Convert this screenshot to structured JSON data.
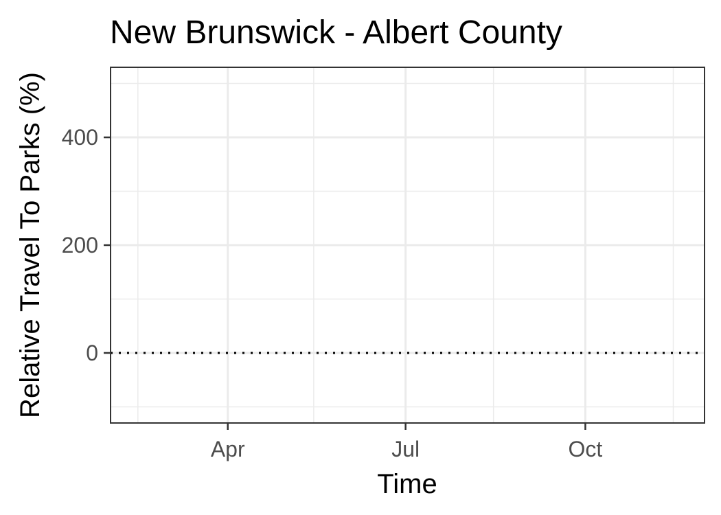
{
  "chart_data": {
    "type": "line",
    "title": "New Brunswick - Albert County",
    "xlabel": "Time",
    "ylabel": "Relative Travel To Parks (%)",
    "x_ticks": [
      {
        "date": "2020-04-01",
        "label": "Apr"
      },
      {
        "date": "2020-07-01",
        "label": "Jul"
      },
      {
        "date": "2020-10-01",
        "label": "Oct"
      }
    ],
    "x_minor_ticks": [
      "2020-02-15",
      "2020-05-15",
      "2020-08-15",
      "2020-11-15"
    ],
    "xlim": [
      "2020-02-01",
      "2020-12-01"
    ],
    "y_ticks": [
      0,
      200,
      400
    ],
    "y_minor_ticks": [
      -100,
      100,
      300,
      500
    ],
    "ylim": [
      -130,
      530
    ],
    "reference_line": {
      "y": 0,
      "style": "dotted",
      "color": "#000000"
    },
    "series": [],
    "grid": true,
    "legend": "none",
    "colors": {
      "grid": "#ebebeb",
      "panel_border": "#333333",
      "tick_label": "#4d4d4d",
      "tick_mark": "#333333"
    }
  }
}
